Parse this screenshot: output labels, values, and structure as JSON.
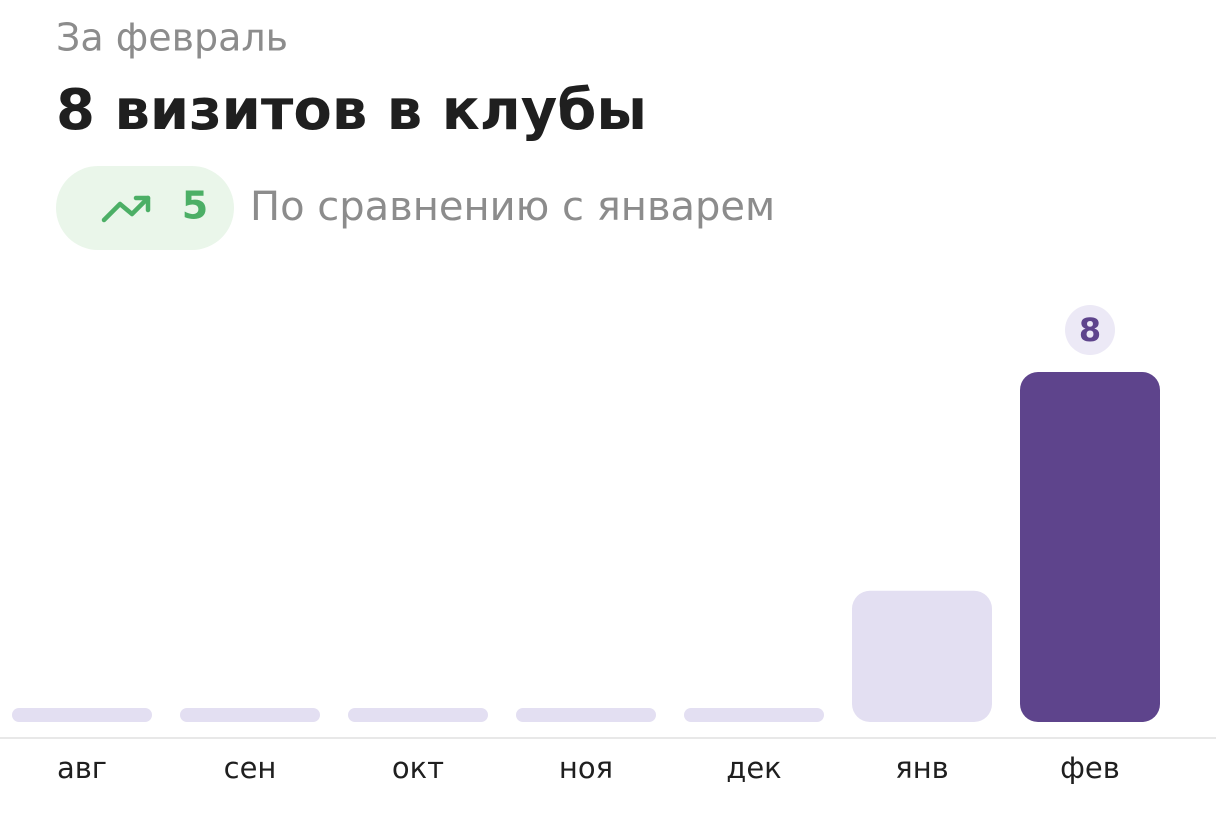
{
  "period": "За февраль",
  "title": "8 визитов в клубы",
  "delta": 5,
  "delta_caption": "По сравнению с январем",
  "chart_data": {
    "type": "bar",
    "categories": [
      "авг",
      "сен",
      "окт",
      "ноя",
      "дек",
      "янв",
      "фев"
    ],
    "values": [
      0,
      0,
      0,
      0,
      0,
      3,
      8
    ],
    "color": "#e3dff2",
    "highlight": "фев",
    "highlight_color": "#5e448c",
    "ylim": [
      0,
      8
    ]
  }
}
